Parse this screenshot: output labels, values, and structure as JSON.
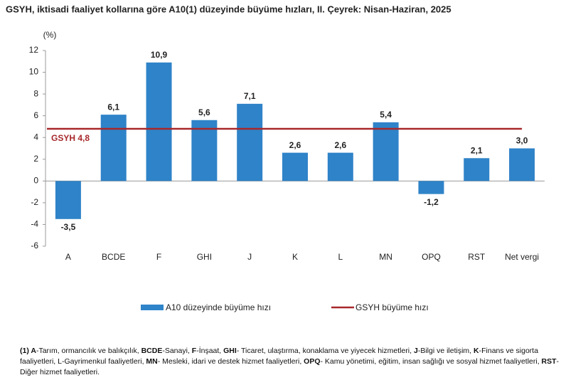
{
  "chart_data": {
    "type": "bar",
    "title": "GSYH, iktisadi faaliyet kollarına göre A10(1) düzeyinde büyüme hızları, II. Çeyrek: Nisan-Haziran, 2025",
    "y_label": "(%)",
    "categories": [
      "A",
      "BCDE",
      "F",
      "GHI",
      "J",
      "K",
      "L",
      "MN",
      "OPQ",
      "RST",
      "Net vergi"
    ],
    "series": [
      {
        "name": "A10 düzeyinde büyüme hızı",
        "color": "#2f83c8",
        "values": [
          -3.5,
          6.1,
          10.9,
          5.6,
          7.1,
          2.6,
          2.6,
          5.4,
          -1.2,
          2.1,
          3.0
        ],
        "value_labels": [
          "-3,5",
          "6,1",
          "10,9",
          "5,6",
          "7,1",
          "2,6",
          "2,6",
          "5,4",
          "-1,2",
          "2,1",
          "3,0"
        ]
      }
    ],
    "reference_line": {
      "name": "GSYH büyüme hızı",
      "value": 4.8,
      "label": "GSYH 4,8",
      "color": "#a8282b"
    },
    "ylim": [
      -6,
      12
    ],
    "yticks": [
      -6,
      -4,
      -2,
      0,
      2,
      4,
      6,
      8,
      10,
      12
    ],
    "grid": false,
    "footnote": [
      "(1) A",
      "-Tarım, ormancılık ve balıkçılık, ",
      "BCDE",
      "-Sanayi, ",
      "F",
      "-İnşaat, ",
      "GHI",
      "- Ticaret, ulaştırma, konaklama ve yiyecek hizmetleri, ",
      "J",
      "-Bilgi ve iletişim, ",
      "K",
      "-Finans ve sigorta faaliyetleri, L-Gayrimenkul faaliyetleri, ",
      "MN",
      "- Mesleki, idari ve destek hizmet faaliyetleri, ",
      "OPQ",
      "- Kamu yönetimi, eğitim, insan sağlığı ve sosyal hizmet faaliyetleri, ",
      "RST",
      "- Diğer hizmet faaliyetleri."
    ]
  }
}
